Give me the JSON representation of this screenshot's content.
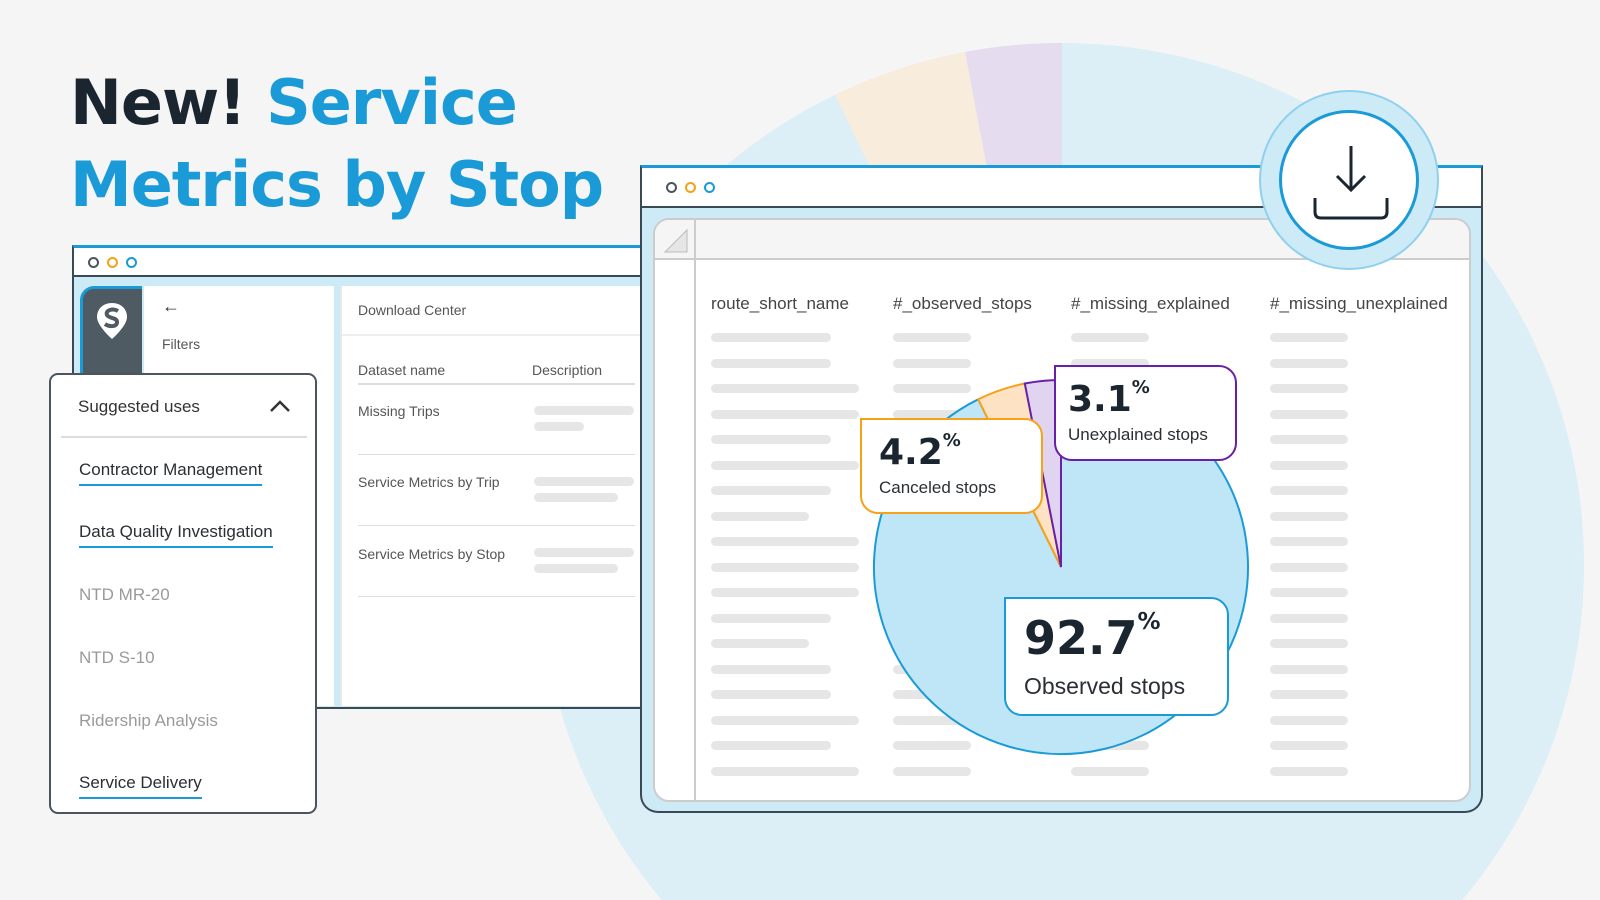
{
  "headline": {
    "part1": "New!",
    "part2": "Service",
    "part3": "Metrics by Stop"
  },
  "colors": {
    "accent": "#1a9bd7",
    "observed": "#bfe6f7",
    "canceled": "#fde3c4",
    "canceled_border": "#f7a11a",
    "unexplained": "#e0d4f0",
    "unexplained_border": "#6a1fa8",
    "dark": "#1b2530"
  },
  "left_window": {
    "filters_label": "Filters",
    "back_icon": "arrow-left-icon",
    "logo_icon": "location-pin-s-logo",
    "main_title": "Download Center",
    "columns": [
      "Dataset name",
      "Description"
    ],
    "datasets": [
      "Missing Trips",
      "Service Metrics by Trip",
      "Service Metrics by Stop"
    ]
  },
  "dropdown": {
    "title": "Suggested uses",
    "icon": "chevron-up-icon",
    "items": [
      {
        "label": "Contractor Management",
        "active": true
      },
      {
        "label": "Data Quality Investigation",
        "active": true
      },
      {
        "label": "NTD MR-20",
        "active": false
      },
      {
        "label": "NTD S-10",
        "active": false
      },
      {
        "label": "Ridership Analysis",
        "active": false
      },
      {
        "label": "Service Delivery",
        "active": true
      }
    ]
  },
  "spreadsheet": {
    "columns": [
      "route_short_name",
      "#_observed_stops",
      "#_missing_explained",
      "#_missing_unexplained"
    ],
    "download_icon": "download-icon"
  },
  "chart_data": {
    "type": "pie",
    "slices": [
      {
        "label": "Observed stops",
        "value": 92.7,
        "color": "#bfe6f7"
      },
      {
        "label": "Canceled stops",
        "value": 4.2,
        "color": "#fde3c4"
      },
      {
        "label": "Unexplained stops",
        "value": 3.1,
        "color": "#e0d4f0"
      }
    ],
    "callouts": {
      "observed": {
        "value": "92.7",
        "unit": "%",
        "label": "Observed stops"
      },
      "canceled": {
        "value": "4.2",
        "unit": "%",
        "label": "Canceled stops"
      },
      "unexplained": {
        "value": "3.1",
        "unit": "%",
        "label": "Unexplained stops"
      }
    }
  }
}
